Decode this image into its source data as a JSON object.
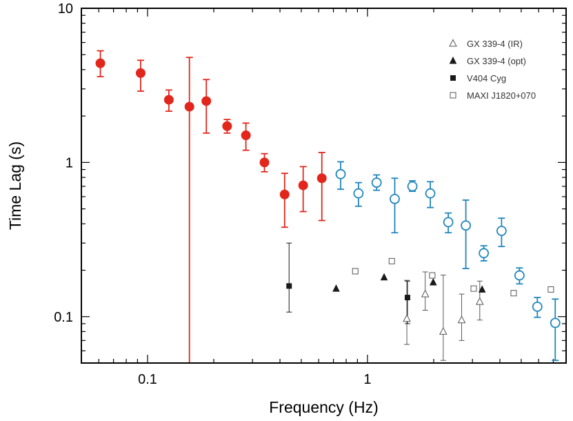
{
  "chart_data": {
    "type": "scatter",
    "title": "",
    "xlabel": "Frequency (Hz)",
    "ylabel": "Time Lag (s)",
    "xscale": "log",
    "yscale": "log",
    "xlim": [
      0.05,
      8.0
    ],
    "ylim": [
      0.05,
      10
    ],
    "x_ticks": [
      {
        "value": 0.1,
        "label": "0.1"
      },
      {
        "value": 1,
        "label": "1"
      }
    ],
    "y_ticks": [
      {
        "value": 0.1,
        "label": "0.1"
      },
      {
        "value": 1,
        "label": "1"
      },
      {
        "value": 10,
        "label": "10"
      }
    ],
    "grid": false,
    "legend_position": "top-right",
    "colors": {
      "red": "#e3261c",
      "blue": "#1f86bd",
      "gray": "#555555",
      "black": "#1a1a1a"
    },
    "series": [
      {
        "marker": "circle-filled",
        "color": "#e3261c",
        "points": [
          {
            "x": 0.061,
            "y": 4.4,
            "ylo": 3.6,
            "yhi": 5.3
          },
          {
            "x": 0.093,
            "y": 3.8,
            "ylo": 2.9,
            "yhi": 4.6
          },
          {
            "x": 0.125,
            "y": 2.55,
            "ylo": 2.15,
            "yhi": 2.95
          },
          {
            "x": 0.155,
            "y": 2.3,
            "ylo": 0.05,
            "yhi": 4.8
          },
          {
            "x": 0.185,
            "y": 2.5,
            "ylo": 1.55,
            "yhi": 3.45
          },
          {
            "x": 0.23,
            "y": 1.72,
            "ylo": 1.55,
            "yhi": 1.9
          },
          {
            "x": 0.28,
            "y": 1.5,
            "ylo": 1.2,
            "yhi": 1.8
          },
          {
            "x": 0.34,
            "y": 1.0,
            "ylo": 0.87,
            "yhi": 1.14
          },
          {
            "x": 0.42,
            "y": 0.62,
            "ylo": 0.38,
            "yhi": 0.85
          },
          {
            "x": 0.51,
            "y": 0.71,
            "ylo": 0.48,
            "yhi": 0.94
          },
          {
            "x": 0.62,
            "y": 0.79,
            "ylo": 0.42,
            "yhi": 1.16
          }
        ]
      },
      {
        "marker": "circle-open",
        "color": "#1f86bd",
        "points": [
          {
            "x": 0.755,
            "y": 0.84,
            "ylo": 0.67,
            "yhi": 1.01
          },
          {
            "x": 0.91,
            "y": 0.63,
            "ylo": 0.52,
            "yhi": 0.74
          },
          {
            "x": 1.1,
            "y": 0.74,
            "ylo": 0.66,
            "yhi": 0.83
          },
          {
            "x": 1.33,
            "y": 0.58,
            "ylo": 0.35,
            "yhi": 0.79
          },
          {
            "x": 1.6,
            "y": 0.7,
            "ylo": 0.65,
            "yhi": 0.76
          },
          {
            "x": 1.93,
            "y": 0.63,
            "ylo": 0.51,
            "yhi": 0.75
          },
          {
            "x": 2.33,
            "y": 0.41,
            "ylo": 0.35,
            "yhi": 0.47
          },
          {
            "x": 2.8,
            "y": 0.39,
            "ylo": 0.205,
            "yhi": 0.57
          },
          {
            "x": 3.38,
            "y": 0.258,
            "ylo": 0.23,
            "yhi": 0.288
          },
          {
            "x": 4.07,
            "y": 0.36,
            "ylo": 0.285,
            "yhi": 0.435
          },
          {
            "x": 4.91,
            "y": 0.185,
            "ylo": 0.163,
            "yhi": 0.207
          },
          {
            "x": 5.92,
            "y": 0.116,
            "ylo": 0.099,
            "yhi": 0.133
          },
          {
            "x": 7.14,
            "y": 0.091,
            "ylo": 0.052,
            "yhi": 0.13
          }
        ]
      },
      {
        "name": "GX 339-4 (IR)",
        "marker": "triangle-open",
        "color": "#555555",
        "points": [
          {
            "x": 1.51,
            "y": 0.097,
            "ylo": 0.066,
            "yhi": 0.172
          },
          {
            "x": 1.83,
            "y": 0.14,
            "ylo": 0.11,
            "yhi": 0.195
          },
          {
            "x": 2.21,
            "y": 0.08,
            "ylo": 0.052,
            "yhi": 0.186
          },
          {
            "x": 2.68,
            "y": 0.095,
            "ylo": 0.07,
            "yhi": 0.14
          },
          {
            "x": 3.24,
            "y": 0.125,
            "ylo": 0.095,
            "yhi": 0.17
          }
        ]
      },
      {
        "name": "GX 339-4 (opt)",
        "marker": "triangle-filled",
        "color": "#1a1a1a",
        "points": [
          {
            "x": 0.72,
            "y": 0.152
          },
          {
            "x": 1.19,
            "y": 0.18
          },
          {
            "x": 1.99,
            "y": 0.167
          },
          {
            "x": 3.32,
            "y": 0.15
          }
        ]
      },
      {
        "name": "V404 Cyg",
        "marker": "square-filled",
        "color": "#1a1a1a",
        "points": [
          {
            "x": 0.44,
            "y": 0.158,
            "ylo": 0.107,
            "yhi": 0.3
          },
          {
            "x": 1.52,
            "y": 0.133,
            "ylo": 0.09,
            "yhi": 0.17
          }
        ]
      },
      {
        "name": "MAXI J1820+070",
        "marker": "square-open",
        "color": "#555555",
        "points": [
          {
            "x": 0.88,
            "y": 0.197
          },
          {
            "x": 1.29,
            "y": 0.229
          },
          {
            "x": 1.97,
            "y": 0.185
          },
          {
            "x": 3.04,
            "y": 0.152
          },
          {
            "x": 4.62,
            "y": 0.142
          },
          {
            "x": 6.82,
            "y": 0.15
          }
        ]
      }
    ]
  }
}
